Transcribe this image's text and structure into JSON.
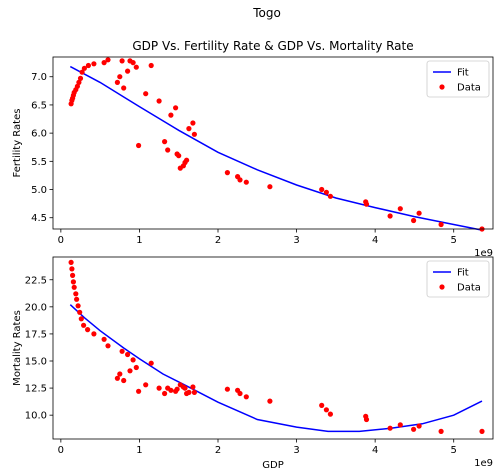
{
  "figure": {
    "suptitle": "Togo",
    "offset_text": "1e9"
  },
  "chart_data": [
    {
      "type": "scatter",
      "title": "GDP Vs. Fertility Rate & GDP Vs. Mortality Rate",
      "xlabel": "",
      "ylabel": "Fertility Rates",
      "xlim": [
        -0.1,
        5.5
      ],
      "ylim": [
        4.3,
        7.35
      ],
      "x_ticks": [
        0,
        1,
        2,
        3,
        4,
        5
      ],
      "x_tick_labels": [
        "0",
        "1",
        "2",
        "3",
        "4",
        "5"
      ],
      "y_ticks": [
        4.5,
        5.0,
        5.5,
        6.0,
        6.5,
        7.0
      ],
      "y_tick_labels": [
        "4.5",
        "5.0",
        "5.5",
        "6.0",
        "6.5",
        "7.0"
      ],
      "x_scale_label": "1e9",
      "legend": {
        "location": "upper right",
        "entries": [
          "Fit",
          "Data"
        ]
      },
      "series": [
        {
          "name": "Fit",
          "kind": "line",
          "color": "#0000ff",
          "x": [
            0.12,
            0.5,
            1.0,
            1.5,
            2.0,
            2.5,
            3.0,
            3.5,
            4.0,
            4.5,
            5.0,
            5.36
          ],
          "y": [
            7.18,
            6.9,
            6.47,
            6.05,
            5.66,
            5.35,
            5.08,
            4.85,
            4.68,
            4.52,
            4.38,
            4.28
          ]
        },
        {
          "name": "Data",
          "kind": "scatter",
          "color": "#ff0000",
          "x": [
            0.13,
            0.14,
            0.15,
            0.16,
            0.17,
            0.19,
            0.21,
            0.23,
            0.25,
            0.27,
            0.3,
            0.35,
            0.42,
            0.55,
            0.6,
            0.72,
            0.75,
            0.78,
            0.8,
            0.85,
            0.88,
            0.92,
            0.96,
            0.99,
            1.08,
            1.15,
            1.25,
            1.32,
            1.36,
            1.4,
            1.46,
            1.48,
            1.5,
            1.52,
            1.56,
            1.58,
            1.6,
            1.63,
            1.68,
            1.7,
            2.12,
            2.25,
            2.28,
            2.36,
            2.66,
            3.32,
            3.38,
            3.43,
            3.88,
            3.89,
            4.19,
            4.32,
            4.49,
            4.56,
            4.84,
            5.36
          ],
          "y": [
            6.52,
            6.58,
            6.62,
            6.67,
            6.72,
            6.77,
            6.83,
            6.9,
            6.97,
            7.08,
            7.15,
            7.2,
            7.23,
            7.25,
            7.3,
            6.9,
            7.0,
            7.28,
            6.8,
            7.1,
            7.28,
            7.25,
            7.17,
            5.78,
            6.7,
            7.2,
            6.57,
            5.85,
            5.7,
            6.32,
            6.45,
            5.63,
            5.6,
            5.38,
            5.42,
            5.48,
            5.52,
            6.08,
            6.18,
            5.98,
            5.3,
            5.23,
            5.17,
            5.13,
            5.05,
            5.0,
            4.95,
            4.88,
            4.78,
            4.74,
            4.53,
            4.66,
            4.45,
            4.58,
            4.38,
            4.3
          ]
        }
      ]
    },
    {
      "type": "scatter",
      "title": "",
      "xlabel": "GDP",
      "ylabel": "Mortality Rates",
      "xlim": [
        -0.1,
        5.5
      ],
      "ylim": [
        7.8,
        24.6
      ],
      "x_ticks": [
        0,
        1,
        2,
        3,
        4,
        5
      ],
      "x_tick_labels": [
        "0",
        "1",
        "2",
        "3",
        "4",
        "5"
      ],
      "y_ticks": [
        10.0,
        12.5,
        15.0,
        17.5,
        20.0,
        22.5
      ],
      "y_tick_labels": [
        "10.0",
        "12.5",
        "15.0",
        "17.5",
        "20.0",
        "22.5"
      ],
      "x_scale_label": "1e9",
      "legend": {
        "location": "upper right",
        "entries": [
          "Fit",
          "Data"
        ]
      },
      "series": [
        {
          "name": "Fit",
          "kind": "line",
          "color": "#0000ff",
          "x": [
            0.12,
            0.3,
            0.5,
            0.8,
            1.0,
            1.3,
            1.6,
            2.0,
            2.5,
            3.0,
            3.4,
            3.8,
            4.2,
            4.6,
            5.0,
            5.36
          ],
          "y": [
            20.2,
            19.0,
            17.8,
            16.2,
            15.2,
            13.8,
            12.7,
            11.2,
            9.6,
            8.9,
            8.5,
            8.5,
            8.8,
            9.2,
            10.0,
            11.3
          ]
        },
        {
          "name": "Data",
          "kind": "scatter",
          "color": "#ff0000",
          "x": [
            0.13,
            0.14,
            0.15,
            0.16,
            0.17,
            0.19,
            0.2,
            0.22,
            0.24,
            0.26,
            0.29,
            0.34,
            0.42,
            0.55,
            0.6,
            0.72,
            0.75,
            0.78,
            0.8,
            0.85,
            0.88,
            0.92,
            0.96,
            0.99,
            1.08,
            1.15,
            1.25,
            1.32,
            1.36,
            1.4,
            1.46,
            1.48,
            1.52,
            1.56,
            1.58,
            1.6,
            1.63,
            1.68,
            1.7,
            2.12,
            2.25,
            2.28,
            2.36,
            2.66,
            3.32,
            3.38,
            3.43,
            3.88,
            3.89,
            4.19,
            4.32,
            4.49,
            4.56,
            4.84,
            5.36
          ],
          "y": [
            24.1,
            23.5,
            22.9,
            22.3,
            21.8,
            21.2,
            20.7,
            20.1,
            19.5,
            18.9,
            18.3,
            17.9,
            17.5,
            17.0,
            16.4,
            13.4,
            13.8,
            15.9,
            13.2,
            15.6,
            14.1,
            15.1,
            14.4,
            12.2,
            12.8,
            14.8,
            12.5,
            12.0,
            12.5,
            12.3,
            12.2,
            12.4,
            12.8,
            12.6,
            12.5,
            12.0,
            12.1,
            12.6,
            12.1,
            12.4,
            12.3,
            12.0,
            11.7,
            11.3,
            10.9,
            10.5,
            10.1,
            9.9,
            9.6,
            8.8,
            9.1,
            8.7,
            9.0,
            8.5,
            8.5
          ]
        }
      ]
    }
  ]
}
